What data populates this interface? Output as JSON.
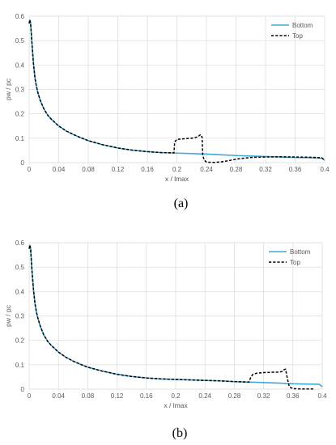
{
  "chart_data": [
    {
      "type": "line",
      "caption": "(a)",
      "xlabel": "x / lmax",
      "ylabel": "pw / pc",
      "xlim": [
        0,
        0.4
      ],
      "ylim": [
        0,
        0.6
      ],
      "x_ticks": [
        "0",
        "0.04",
        "0.08",
        "0.12",
        "0.16",
        "0.2",
        "0.24",
        "0.28",
        "0.32",
        "0.36",
        "0.4"
      ],
      "y_ticks": [
        "0",
        "0.1",
        "0.2",
        "0.3",
        "0.4",
        "0.5",
        "0.6"
      ],
      "grid": true,
      "legend_position": "top-right",
      "series": [
        {
          "name": "Bottom",
          "color": "#41a9d6",
          "style": "solid",
          "x": [
            0,
            0.001,
            0.002,
            0.004,
            0.006,
            0.008,
            0.01,
            0.012,
            0.015,
            0.02,
            0.025,
            0.03,
            0.04,
            0.05,
            0.06,
            0.07,
            0.08,
            0.1,
            0.12,
            0.14,
            0.16,
            0.18,
            0.2,
            0.22,
            0.24,
            0.26,
            0.28,
            0.3,
            0.32,
            0.34,
            0.36,
            0.38,
            0.396,
            0.4
          ],
          "y": [
            0.57,
            0.585,
            0.57,
            0.48,
            0.4,
            0.345,
            0.31,
            0.285,
            0.255,
            0.22,
            0.195,
            0.178,
            0.15,
            0.13,
            0.115,
            0.102,
            0.09,
            0.073,
            0.06,
            0.051,
            0.045,
            0.041,
            0.039,
            0.037,
            0.035,
            0.032,
            0.029,
            0.027,
            0.025,
            0.023,
            0.021,
            0.02,
            0.018,
            0.01
          ]
        },
        {
          "name": "Top",
          "color": "#000000",
          "style": "dashed",
          "x": [
            0,
            0.001,
            0.002,
            0.004,
            0.006,
            0.008,
            0.01,
            0.012,
            0.015,
            0.02,
            0.025,
            0.03,
            0.04,
            0.05,
            0.06,
            0.07,
            0.08,
            0.1,
            0.12,
            0.14,
            0.16,
            0.18,
            0.196,
            0.197,
            0.2,
            0.21,
            0.22,
            0.228,
            0.232,
            0.234,
            0.235,
            0.237,
            0.24,
            0.25,
            0.26,
            0.27,
            0.28,
            0.29,
            0.3,
            0.32,
            0.34,
            0.36,
            0.38,
            0.396,
            0.4
          ],
          "y": [
            0.57,
            0.585,
            0.57,
            0.48,
            0.4,
            0.345,
            0.31,
            0.285,
            0.255,
            0.22,
            0.195,
            0.178,
            0.15,
            0.13,
            0.115,
            0.102,
            0.09,
            0.073,
            0.06,
            0.051,
            0.045,
            0.041,
            0.04,
            0.085,
            0.095,
            0.098,
            0.1,
            0.105,
            0.115,
            0.105,
            0.03,
            0.01,
            0.002,
            0.001,
            0.003,
            0.008,
            0.014,
            0.018,
            0.021,
            0.023,
            0.024,
            0.023,
            0.022,
            0.02,
            0.01
          ]
        }
      ]
    },
    {
      "type": "line",
      "caption": "(b)",
      "xlabel": "x / lmax",
      "ylabel": "pw / pc",
      "xlim": [
        0,
        0.4
      ],
      "ylim": [
        0,
        0.6
      ],
      "x_ticks": [
        "0",
        "0.04",
        "0.08",
        "0.12",
        "0.16",
        "0.2",
        "0.24",
        "0.28",
        "0.32",
        "0.36",
        "0.4"
      ],
      "y_ticks": [
        "0",
        "0.1",
        "0.2",
        "0.3",
        "0.4",
        "0.5",
        "0.6"
      ],
      "grid": true,
      "legend_position": "top-right",
      "series": [
        {
          "name": "Bottom",
          "color": "#41a9d6",
          "style": "solid",
          "x": [
            0,
            0.001,
            0.002,
            0.004,
            0.006,
            0.008,
            0.01,
            0.012,
            0.015,
            0.02,
            0.025,
            0.03,
            0.04,
            0.05,
            0.06,
            0.07,
            0.08,
            0.1,
            0.12,
            0.14,
            0.16,
            0.18,
            0.2,
            0.22,
            0.24,
            0.26,
            0.28,
            0.3,
            0.32,
            0.34,
            0.36,
            0.38,
            0.396,
            0.4
          ],
          "y": [
            0.575,
            0.59,
            0.575,
            0.48,
            0.405,
            0.35,
            0.315,
            0.29,
            0.26,
            0.222,
            0.197,
            0.18,
            0.152,
            0.131,
            0.115,
            0.102,
            0.09,
            0.074,
            0.061,
            0.052,
            0.046,
            0.042,
            0.04,
            0.038,
            0.036,
            0.034,
            0.031,
            0.029,
            0.027,
            0.025,
            0.022,
            0.021,
            0.02,
            0.01
          ]
        },
        {
          "name": "Top",
          "color": "#000000",
          "style": "dashed",
          "x": [
            0,
            0.001,
            0.002,
            0.004,
            0.006,
            0.008,
            0.01,
            0.012,
            0.015,
            0.02,
            0.025,
            0.03,
            0.04,
            0.05,
            0.06,
            0.07,
            0.08,
            0.1,
            0.12,
            0.14,
            0.16,
            0.18,
            0.2,
            0.22,
            0.24,
            0.26,
            0.28,
            0.29,
            0.3,
            0.302,
            0.305,
            0.31,
            0.32,
            0.33,
            0.34,
            0.345,
            0.348,
            0.35,
            0.352,
            0.355,
            0.36,
            0.37,
            0.38,
            0.39
          ],
          "y": [
            0.575,
            0.59,
            0.575,
            0.48,
            0.405,
            0.35,
            0.315,
            0.29,
            0.26,
            0.222,
            0.197,
            0.18,
            0.152,
            0.131,
            0.115,
            0.102,
            0.09,
            0.074,
            0.061,
            0.052,
            0.046,
            0.042,
            0.04,
            0.038,
            0.036,
            0.034,
            0.031,
            0.03,
            0.029,
            0.045,
            0.06,
            0.065,
            0.068,
            0.069,
            0.07,
            0.072,
            0.08,
            0.082,
            0.05,
            0.01,
            0.002,
            0.001,
            0.001,
            0.001
          ]
        }
      ]
    }
  ]
}
